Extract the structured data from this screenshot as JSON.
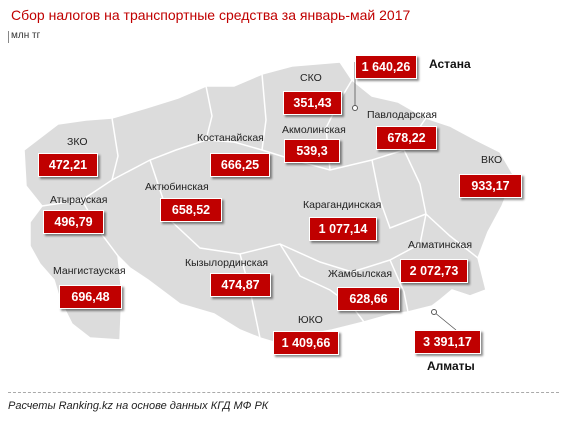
{
  "title": "Сбор налогов на транспортные средства за январь-май 2017",
  "unit": "млн тг",
  "source": "Расчеты Ranking.kz на основе данных КГД МФ РК",
  "colors": {
    "accent": "#c00000",
    "land": "#dcdcdc",
    "border": "#ffffff"
  },
  "regions": [
    {
      "name": "СКО",
      "value": "351,43"
    },
    {
      "name": "ЗКО",
      "value": "472,21"
    },
    {
      "name": "Костанайская",
      "value": "666,25"
    },
    {
      "name": "Акмолинская",
      "value": "539,3"
    },
    {
      "name": "Павлодарская",
      "value": "678,22"
    },
    {
      "name": "ВКО",
      "value": "933,17"
    },
    {
      "name": "Атырауская",
      "value": "496,79"
    },
    {
      "name": "Актюбинская",
      "value": "658,52"
    },
    {
      "name": "Карагандинская",
      "value": "1 077,14"
    },
    {
      "name": "Мангистауская",
      "value": "696,48"
    },
    {
      "name": "Кызылординская",
      "value": "474,87"
    },
    {
      "name": "Жамбылская",
      "value": "628,66"
    },
    {
      "name": "Алматинская",
      "value": "2 072,73"
    },
    {
      "name": "ЮКО",
      "value": "1 409,66"
    }
  ],
  "cities": [
    {
      "name": "Астана",
      "value": "1 640,26"
    },
    {
      "name": "Алматы",
      "value": "3 391,17"
    }
  ]
}
